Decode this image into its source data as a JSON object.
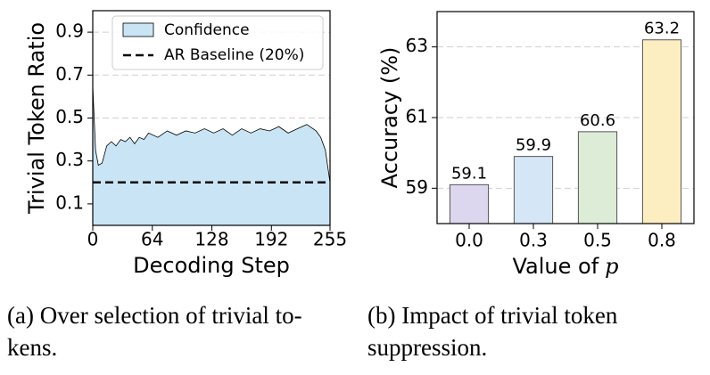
{
  "chart_data": [
    {
      "type": "area",
      "xlabel": "Decoding Step",
      "ylabel": "Trivial Token Ratio",
      "x": [
        0,
        3,
        6,
        10,
        15,
        20,
        25,
        30,
        35,
        40,
        45,
        50,
        55,
        60,
        70,
        80,
        90,
        100,
        110,
        120,
        130,
        140,
        150,
        160,
        170,
        180,
        190,
        200,
        210,
        220,
        230,
        240,
        245,
        250,
        255
      ],
      "series": [
        {
          "name": "Confidence",
          "color": "#c9e5f5",
          "values": [
            0.65,
            0.35,
            0.28,
            0.29,
            0.37,
            0.39,
            0.37,
            0.4,
            0.39,
            0.41,
            0.38,
            0.41,
            0.4,
            0.43,
            0.41,
            0.44,
            0.42,
            0.44,
            0.43,
            0.45,
            0.43,
            0.45,
            0.42,
            0.45,
            0.43,
            0.45,
            0.44,
            0.46,
            0.43,
            0.45,
            0.47,
            0.44,
            0.41,
            0.35,
            0.2
          ]
        }
      ],
      "baseline": {
        "name": "AR Baseline (20%)",
        "value": 0.2,
        "color": "#000000"
      },
      "xlim": [
        0,
        255
      ],
      "xticks": [
        0,
        64,
        128,
        192,
        255
      ],
      "ylim": [
        0,
        1
      ],
      "yticks": [
        0.1,
        0.3,
        0.5,
        0.7,
        0.9
      ],
      "grid": true,
      "legend": "upper right",
      "caption": [
        "(a)  Over selection of trivial to-",
        "kens."
      ]
    },
    {
      "type": "bar",
      "xlabel": "Value of",
      "xlabel_var": "p",
      "ylabel": "Accuracy (%)",
      "categories": [
        "0.0",
        "0.3",
        "0.5",
        "0.8"
      ],
      "values": [
        59.1,
        59.9,
        60.6,
        63.2
      ],
      "colors": [
        "#dcd6ee",
        "#d5e6f6",
        "#dcecd6",
        "#fdeec1"
      ],
      "ylim": [
        58,
        64
      ],
      "yticks": [
        59,
        61,
        63
      ],
      "grid": true,
      "caption": [
        "(b)  Impact  of  trivial  token",
        "suppression."
      ]
    }
  ]
}
